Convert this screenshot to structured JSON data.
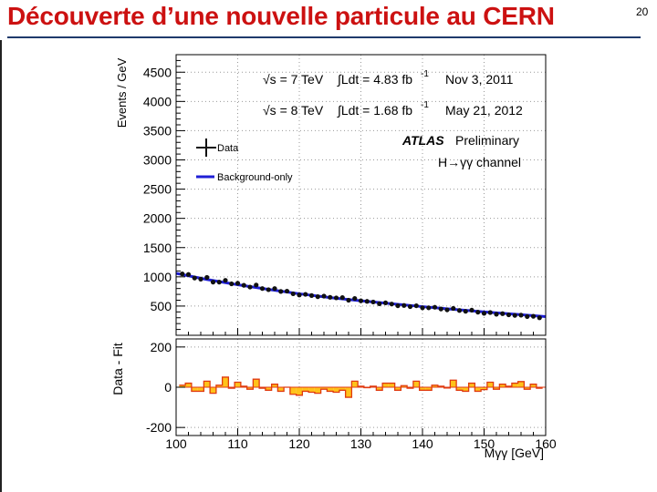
{
  "slide": {
    "title": "Découverte d’une nouvelle particule au CERN",
    "number": "20"
  },
  "chart_data": {
    "type": "scatter",
    "xlabel": "Mγγ [GeV]",
    "ylabel": "Events / GeV",
    "xlim": [
      100,
      160
    ],
    "ylim": [
      0,
      4800
    ],
    "xticks": [
      100,
      110,
      120,
      130,
      140,
      150,
      160
    ],
    "yticks": [
      500,
      1000,
      1500,
      2000,
      2500,
      3000,
      3500,
      4000,
      4500
    ],
    "ratio_panel": {
      "ylabel": "Data - Fit",
      "ylim": [
        -240,
        240
      ],
      "yticks": [
        -200,
        0,
        200
      ]
    },
    "annotations": {
      "run1_sqrt_s": "√s = 7 TeV",
      "run1_lumi": "∫Ldt = 4.83 fb",
      "run1_lumi_exp": "-1",
      "run1_date": "Nov 3, 2011",
      "run2_sqrt_s": "√s = 8 TeV",
      "run2_lumi": "∫Ldt = 1.68 fb",
      "run2_lumi_exp": "-1",
      "run2_date": "May 21, 2012",
      "experiment": "ATLAS",
      "status": "Preliminary",
      "channel": "H→γγ channel"
    },
    "legend": {
      "placement": "top-left",
      "entries": [
        "Data",
        "Background-only"
      ]
    },
    "colors": {
      "data": "#111111",
      "background": "#1f1fd6",
      "residual_fill": "#ffc21a",
      "residual_line": "#e03a10"
    },
    "series": [
      {
        "name": "Data",
        "x": [
          101,
          102,
          103,
          104,
          105,
          106,
          107,
          108,
          109,
          110,
          111,
          112,
          113,
          114,
          115,
          116,
          117,
          118,
          119,
          120,
          121,
          122,
          123,
          124,
          125,
          126,
          127,
          128,
          129,
          130,
          131,
          132,
          133,
          134,
          135,
          136,
          137,
          138,
          139,
          140,
          141,
          142,
          143,
          144,
          145,
          146,
          147,
          148,
          149,
          150,
          151,
          152,
          153,
          154,
          155,
          156,
          157,
          158,
          159
        ],
        "y": [
          1050,
          1040,
          980,
          960,
          990,
          910,
          910,
          940,
          880,
          890,
          855,
          825,
          860,
          800,
          780,
          800,
          750,
          755,
          710,
          690,
          700,
          680,
          660,
          670,
          650,
          640,
          645,
          600,
          630,
          590,
          580,
          570,
          540,
          555,
          535,
          505,
          510,
          490,
          505,
          470,
          470,
          480,
          450,
          435,
          460,
          425,
          410,
          430,
          395,
          375,
          390,
          360,
          370,
          350,
          340,
          345,
          320,
          325,
          300
        ]
      },
      {
        "name": "Background-only",
        "x": [
          100,
          105,
          110,
          115,
          120,
          125,
          130,
          135,
          140,
          145,
          150,
          155,
          160
        ],
        "y": [
          1060,
          955,
          865,
          785,
          710,
          645,
          590,
          540,
          490,
          445,
          400,
          360,
          320
        ]
      }
    ],
    "residuals": {
      "x": [
        101,
        102,
        103,
        104,
        105,
        106,
        107,
        108,
        109,
        110,
        111,
        112,
        113,
        114,
        115,
        116,
        117,
        118,
        119,
        120,
        121,
        122,
        123,
        124,
        125,
        126,
        127,
        128,
        129,
        130,
        131,
        132,
        133,
        134,
        135,
        136,
        137,
        138,
        139,
        140,
        141,
        142,
        143,
        144,
        145,
        146,
        147,
        148,
        149,
        150,
        151,
        152,
        153,
        154,
        155,
        156,
        157,
        158,
        159
      ],
      "y": [
        10,
        20,
        -20,
        -20,
        30,
        -30,
        10,
        50,
        -5,
        25,
        5,
        -10,
        40,
        -5,
        -15,
        15,
        -20,
        0,
        -35,
        -40,
        -20,
        -25,
        -30,
        -10,
        -20,
        -25,
        -15,
        -50,
        30,
        5,
        -2,
        5,
        -15,
        20,
        20,
        -15,
        8,
        -5,
        30,
        -15,
        -15,
        10,
        5,
        -4,
        35,
        -15,
        -20,
        20,
        -20,
        -12,
        25,
        -10,
        15,
        5,
        20,
        28,
        -10,
        15,
        -5
      ]
    }
  }
}
